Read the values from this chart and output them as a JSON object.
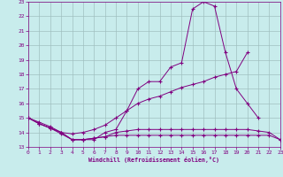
{
  "xlabel": "Windchill (Refroidissement éolien,°C)",
  "background_color": "#c8ecec",
  "grid_color": "#a0c0c0",
  "line_color": "#800080",
  "xlim": [
    0,
    23
  ],
  "ylim": [
    13,
    23
  ],
  "xticks": [
    0,
    1,
    2,
    3,
    4,
    5,
    6,
    7,
    8,
    9,
    10,
    11,
    12,
    13,
    14,
    15,
    16,
    17,
    18,
    19,
    20,
    21,
    22,
    23
  ],
  "yticks": [
    13,
    14,
    15,
    16,
    17,
    18,
    19,
    20,
    21,
    22,
    23
  ],
  "s1_x": [
    0,
    1,
    2,
    3,
    4,
    5,
    6,
    7,
    8,
    9,
    10,
    11,
    12,
    13,
    14,
    15,
    16,
    17,
    18,
    19,
    20,
    21
  ],
  "s1_y": [
    15.0,
    14.7,
    14.4,
    14.0,
    13.5,
    13.5,
    13.5,
    14.0,
    14.2,
    15.5,
    17.0,
    17.5,
    17.5,
    18.5,
    18.8,
    22.5,
    23.0,
    22.7,
    19.5,
    17.0,
    16.0,
    15.0
  ],
  "s2_x": [
    0,
    1,
    2,
    3,
    4,
    5,
    6,
    7,
    8,
    9,
    10,
    11,
    12,
    13,
    14,
    15,
    16,
    17,
    18,
    19,
    20
  ],
  "s2_y": [
    15.0,
    14.6,
    14.3,
    14.0,
    13.9,
    14.0,
    14.2,
    14.5,
    15.0,
    15.5,
    16.0,
    16.3,
    16.5,
    16.8,
    17.1,
    17.3,
    17.5,
    17.8,
    18.0,
    18.2,
    19.5
  ],
  "s3_x": [
    0,
    1,
    2,
    3,
    4,
    5,
    6,
    7,
    8,
    9,
    10,
    11,
    12,
    13,
    14,
    15,
    16,
    17,
    18,
    19,
    20,
    21,
    22,
    23
  ],
  "s3_y": [
    15.0,
    14.6,
    14.3,
    13.9,
    13.5,
    13.5,
    13.6,
    13.7,
    13.8,
    13.8,
    13.8,
    13.8,
    13.8,
    13.8,
    13.8,
    13.8,
    13.8,
    13.8,
    13.8,
    13.8,
    13.8,
    13.8,
    13.8,
    13.5
  ],
  "s4_x": [
    0,
    1,
    2,
    3,
    4,
    5,
    6,
    7,
    8,
    9,
    10,
    11,
    12,
    13,
    14,
    15,
    16,
    17,
    18,
    19,
    20,
    21,
    22,
    23
  ],
  "s4_y": [
    15.0,
    14.6,
    14.3,
    14.0,
    13.5,
    13.5,
    13.6,
    13.7,
    14.0,
    14.1,
    14.2,
    14.2,
    14.2,
    14.2,
    14.2,
    14.2,
    14.2,
    14.2,
    14.2,
    14.2,
    14.2,
    14.1,
    14.0,
    13.5
  ]
}
